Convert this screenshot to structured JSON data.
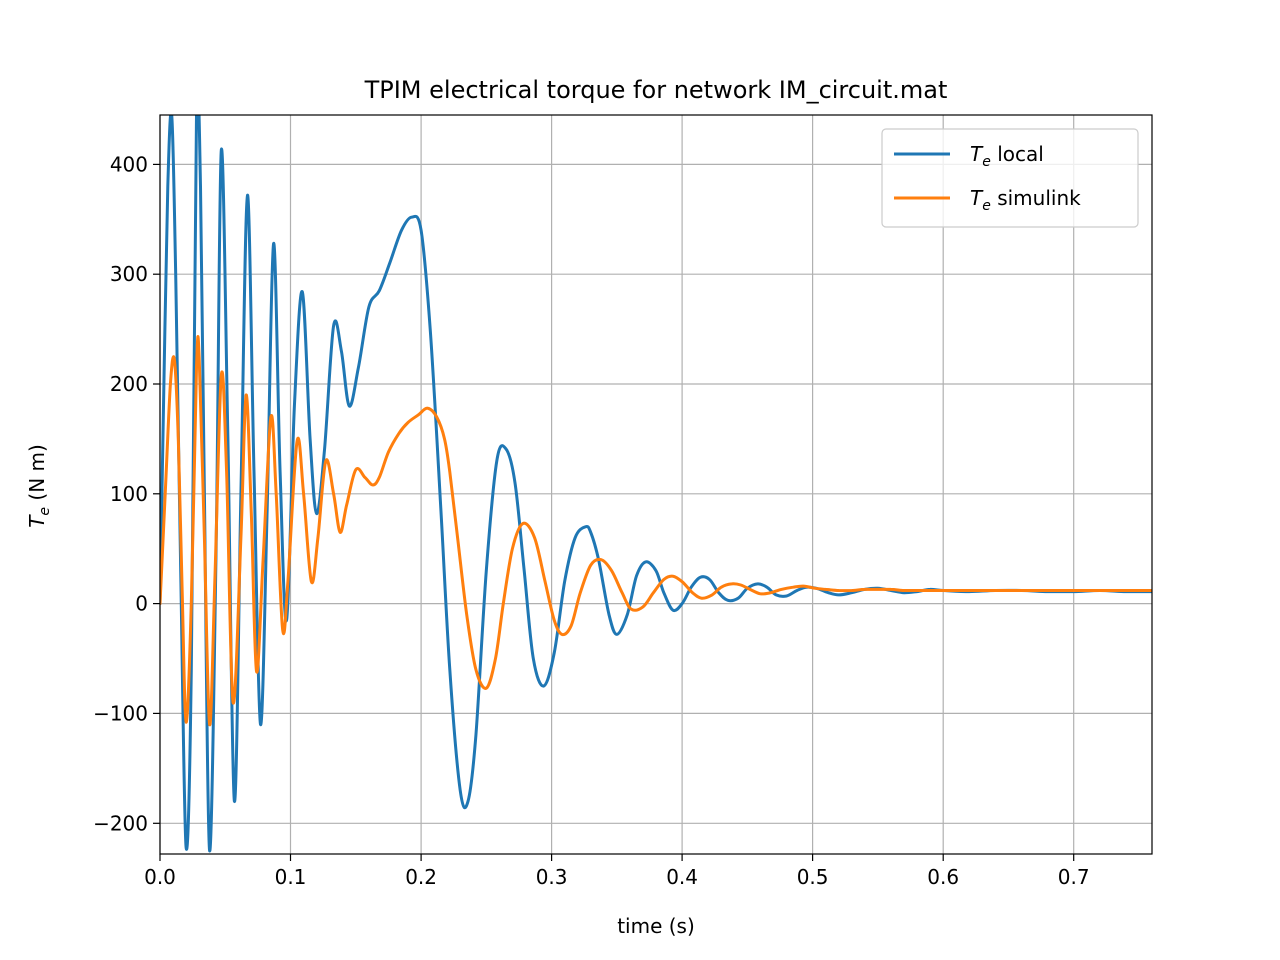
{
  "chart_data": {
    "type": "line",
    "title": "TPIM electrical torque for network IM_circuit.mat",
    "xlabel": "time (s)",
    "ylabel_main": "T",
    "ylabel_sub": "e",
    "ylabel_unit": " (N m)",
    "xlim": [
      0.0,
      0.76
    ],
    "ylim": [
      -228,
      445
    ],
    "xticks": [
      0.0,
      0.1,
      0.2,
      0.3,
      0.4,
      0.5,
      0.6,
      0.7
    ],
    "xtick_labels": [
      "0.0",
      "0.1",
      "0.2",
      "0.3",
      "0.4",
      "0.5",
      "0.6",
      "0.7"
    ],
    "yticks": [
      -200,
      -100,
      0,
      100,
      200,
      300,
      400
    ],
    "ytick_labels": [
      "−200",
      "−100",
      "0",
      "100",
      "200",
      "300",
      "400"
    ],
    "grid": true,
    "legend_position": "top-right",
    "series": [
      {
        "label_main": "T",
        "label_sub": "e",
        "label_rest": " local",
        "color": "#1f77b4",
        "x": [
          0.0,
          0.003,
          0.006,
          0.009,
          0.012,
          0.016,
          0.02,
          0.024,
          0.028,
          0.031,
          0.034,
          0.038,
          0.043,
          0.047,
          0.052,
          0.057,
          0.062,
          0.067,
          0.072,
          0.077,
          0.082,
          0.087,
          0.092,
          0.097,
          0.103,
          0.109,
          0.115,
          0.12,
          0.126,
          0.133,
          0.139,
          0.145,
          0.152,
          0.16,
          0.168,
          0.176,
          0.185,
          0.193,
          0.2,
          0.207,
          0.215,
          0.222,
          0.23,
          0.236,
          0.242,
          0.25,
          0.258,
          0.265,
          0.272,
          0.279,
          0.286,
          0.294,
          0.302,
          0.31,
          0.318,
          0.326,
          0.33,
          0.336,
          0.344,
          0.35,
          0.358,
          0.365,
          0.372,
          0.38,
          0.386,
          0.393,
          0.4,
          0.407,
          0.414,
          0.421,
          0.428,
          0.435,
          0.443,
          0.45,
          0.458,
          0.465,
          0.472,
          0.48,
          0.488,
          0.495,
          0.503,
          0.512,
          0.52,
          0.53,
          0.54,
          0.55,
          0.56,
          0.57,
          0.58,
          0.59,
          0.6,
          0.62,
          0.64,
          0.66,
          0.68,
          0.7,
          0.72,
          0.74,
          0.76
        ],
        "y": [
          0,
          200,
          380,
          445,
          300,
          20,
          -222,
          -60,
          445,
          380,
          100,
          -225,
          50,
          413,
          150,
          -180,
          100,
          372,
          120,
          -110,
          80,
          328,
          120,
          -15,
          180,
          284,
          150,
          82,
          140,
          253,
          230,
          180,
          215,
          270,
          285,
          310,
          340,
          352,
          340,
          250,
          90,
          -60,
          -170,
          -180,
          -120,
          30,
          130,
          141,
          110,
          30,
          -50,
          -75,
          -45,
          20,
          60,
          70,
          65,
          40,
          -10,
          -28,
          -10,
          25,
          38,
          30,
          10,
          -6,
          0,
          15,
          24,
          22,
          10,
          3,
          5,
          14,
          18,
          15,
          8,
          7,
          12,
          15,
          14,
          10,
          8,
          10,
          13,
          14,
          12,
          10,
          11,
          13,
          12,
          11,
          12,
          12,
          11,
          11,
          12,
          11,
          11
        ]
      },
      {
        "label_main": "T",
        "label_sub": "e",
        "label_rest": " simulink",
        "color": "#ff7f0e",
        "x": [
          0.0,
          0.004,
          0.008,
          0.011,
          0.014,
          0.017,
          0.02,
          0.024,
          0.028,
          0.03,
          0.034,
          0.038,
          0.042,
          0.047,
          0.051,
          0.056,
          0.062,
          0.066,
          0.07,
          0.074,
          0.079,
          0.085,
          0.089,
          0.094,
          0.098,
          0.105,
          0.11,
          0.116,
          0.121,
          0.127,
          0.133,
          0.138,
          0.143,
          0.15,
          0.157,
          0.163,
          0.168,
          0.175,
          0.183,
          0.19,
          0.198,
          0.205,
          0.212,
          0.218,
          0.222,
          0.228,
          0.235,
          0.242,
          0.25,
          0.257,
          0.263,
          0.27,
          0.278,
          0.287,
          0.295,
          0.302,
          0.308,
          0.315,
          0.322,
          0.33,
          0.338,
          0.346,
          0.354,
          0.361,
          0.37,
          0.378,
          0.386,
          0.393,
          0.4,
          0.408,
          0.415,
          0.423,
          0.43,
          0.438,
          0.445,
          0.452,
          0.46,
          0.468,
          0.476,
          0.485,
          0.493,
          0.502,
          0.51,
          0.52,
          0.53,
          0.54,
          0.55,
          0.56,
          0.57,
          0.58,
          0.6,
          0.62,
          0.64,
          0.66,
          0.68,
          0.7,
          0.72,
          0.74,
          0.76
        ],
        "y": [
          0,
          100,
          200,
          222,
          150,
          10,
          -108,
          0,
          215,
          224,
          60,
          -110,
          20,
          208,
          120,
          -90,
          60,
          190,
          80,
          -62,
          40,
          170,
          100,
          -24,
          20,
          148,
          100,
          20,
          60,
          130,
          100,
          65,
          90,
          122,
          115,
          108,
          115,
          138,
          155,
          165,
          172,
          178,
          170,
          150,
          120,
          60,
          -10,
          -60,
          -77,
          -50,
          0,
          50,
          73,
          60,
          20,
          -15,
          -28,
          -20,
          10,
          35,
          40,
          30,
          10,
          -5,
          -3,
          10,
          22,
          25,
          20,
          10,
          5,
          8,
          15,
          18,
          17,
          13,
          9,
          10,
          13,
          15,
          16,
          14,
          13,
          12,
          12,
          13,
          13,
          13,
          12,
          12,
          12,
          12,
          12,
          12,
          12,
          12,
          12,
          12,
          12
        ]
      }
    ]
  }
}
